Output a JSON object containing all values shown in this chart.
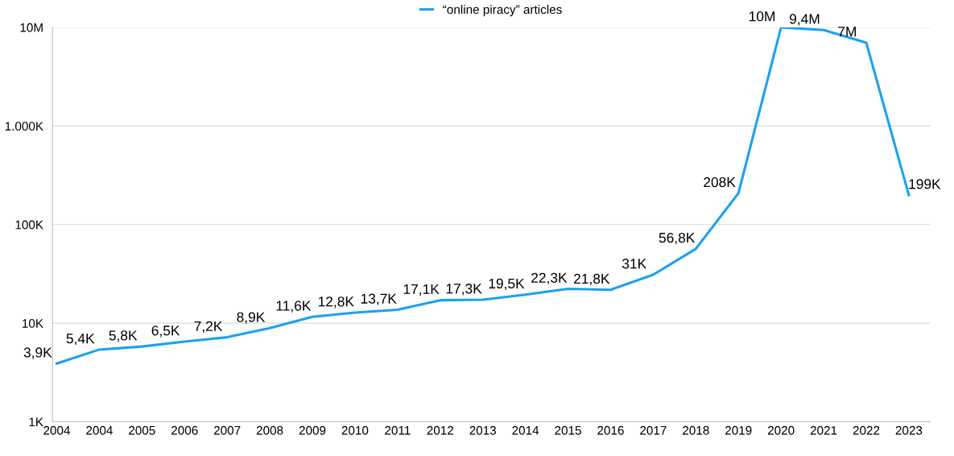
{
  "chart_data": {
    "type": "line",
    "categories": [
      "2004",
      "2004",
      "2005",
      "2006",
      "2007",
      "2008",
      "2009",
      "2010",
      "2011",
      "2012",
      "2013",
      "2014",
      "2015",
      "2016",
      "2017",
      "2018",
      "2019",
      "2020",
      "2021",
      "2022",
      "2023"
    ],
    "series": [
      {
        "name": "“online piracy” articles",
        "color": "#1aa1ef",
        "values": [
          3900,
          5400,
          5800,
          6500,
          7200,
          8900,
          11600,
          12800,
          13700,
          17100,
          17300,
          19500,
          22300,
          21800,
          31000,
          56800,
          208000,
          10000000,
          9400000,
          7000000,
          199000
        ],
        "value_labels": [
          "3,9K",
          "5,4K",
          "5,8K",
          "6,5K",
          "7,2K",
          "8,9K",
          "11,6K",
          "12,8K",
          "13,7K",
          "17,1K",
          "17,3K",
          "19,5K",
          "22,3K",
          "21,8K",
          "31K",
          "56,8K",
          "208K",
          "10M",
          "9,4M",
          "7M",
          "199K"
        ]
      }
    ],
    "log": true,
    "ylim": [
      1000,
      10000000
    ],
    "yticks": [
      {
        "value": 1000,
        "label": "1K"
      },
      {
        "value": 10000,
        "label": "10K"
      },
      {
        "value": 100000,
        "label": "100K"
      },
      {
        "value": 1000000,
        "label": "1.000K"
      },
      {
        "value": 10000000,
        "label": "10M"
      }
    ],
    "grid": "y",
    "legend": "top",
    "marker": "none",
    "line_style": "solid"
  }
}
